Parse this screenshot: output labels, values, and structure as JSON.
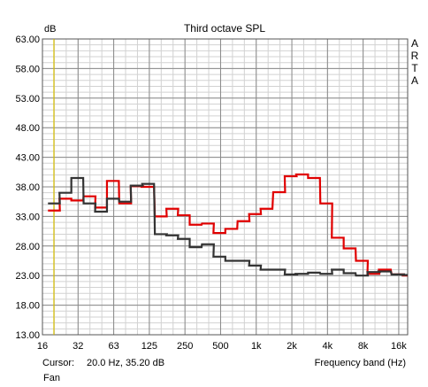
{
  "chart_data": {
    "type": "line",
    "title": "Third octave SPL",
    "ylabel": "dB",
    "xlabel": "Frequency band (Hz)",
    "side_label": [
      "A",
      "R",
      "T",
      "A"
    ],
    "y_ticks": [
      "63.00",
      "58.00",
      "53.00",
      "48.00",
      "43.00",
      "38.00",
      "33.00",
      "28.00",
      "23.00",
      "18.00",
      "13.00"
    ],
    "ylim": [
      13,
      63
    ],
    "x_ticks": [
      "16",
      "32",
      "63",
      "125",
      "250",
      "500",
      "1k",
      "2k",
      "4k",
      "8k",
      "16k"
    ],
    "x_log2_range": [
      4,
      14.25
    ],
    "bands": [
      20,
      25,
      31.5,
      40,
      50,
      63,
      80,
      100,
      125,
      160,
      200,
      250,
      315,
      400,
      500,
      630,
      800,
      1000,
      1250,
      1600,
      2000,
      2500,
      3150,
      4000,
      5000,
      6300,
      8000,
      10000,
      12500,
      16000,
      20000
    ],
    "series": [
      {
        "color": "#e00000",
        "values": [
          34.0,
          36.0,
          35.7,
          36.4,
          34.5,
          39.0,
          35.2,
          38.1,
          38.0,
          33.0,
          34.3,
          33.2,
          31.6,
          31.8,
          30.2,
          30.9,
          32.2,
          33.4,
          34.3,
          37.1,
          39.8,
          40.1,
          39.5,
          35.2,
          29.4,
          27.6,
          25.5,
          23.3,
          24.0,
          23.2,
          23.0
        ]
      },
      {
        "color": "#333333",
        "values": [
          35.2,
          37.0,
          39.5,
          35.2,
          33.8,
          36.0,
          35.5,
          38.2,
          38.5,
          30.0,
          29.8,
          29.2,
          27.8,
          28.3,
          26.2,
          25.5,
          25.5,
          24.7,
          24.0,
          24.0,
          23.2,
          23.3,
          23.5,
          23.3,
          24.0,
          23.4,
          23.0,
          23.6,
          23.7,
          23.2,
          23.1
        ]
      }
    ],
    "cursor": {
      "x": 20.0,
      "color": "#d8c000"
    },
    "grid": true
  },
  "footer": {
    "cursor_label": "Cursor:",
    "cursor_value": "20.0 Hz, 35.20 dB",
    "band_label": "Frequency band (Hz)",
    "name": "Fan"
  }
}
